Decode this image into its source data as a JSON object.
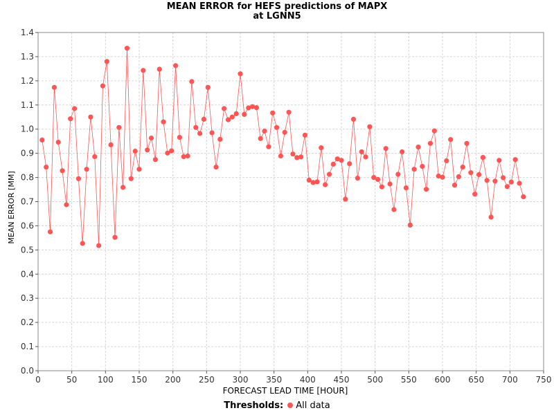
{
  "chart_data": {
    "type": "line",
    "title": "MEAN ERROR for HEFS predictions of MAPX",
    "subtitle": "at LGNN5",
    "xlabel": "FORECAST LEAD TIME [HOUR]",
    "ylabel": "MEAN ERROR [MM]",
    "xlim": [
      0,
      750
    ],
    "ylim": [
      0.0,
      1.4
    ],
    "x_ticks": [
      "0",
      "50",
      "100",
      "150",
      "200",
      "250",
      "300",
      "350",
      "400",
      "450",
      "500",
      "550",
      "600",
      "650",
      "700",
      "750"
    ],
    "y_ticks": [
      "0.0",
      "0.1",
      "0.2",
      "0.3",
      "0.4",
      "0.5",
      "0.6",
      "0.7",
      "0.8",
      "0.9",
      "1.0",
      "1.1",
      "1.2",
      "1.3",
      "1.4"
    ],
    "grid": true,
    "legend_placement": "bottom",
    "legend_title": "Thresholds:",
    "series": [
      {
        "name": "All data",
        "color": "#ff5555",
        "x": [
          6,
          12,
          18,
          24,
          30,
          36,
          42,
          48,
          54,
          60,
          66,
          72,
          78,
          84,
          90,
          96,
          102,
          108,
          114,
          120,
          126,
          132,
          138,
          144,
          150,
          156,
          162,
          168,
          174,
          180,
          186,
          192,
          198,
          204,
          210,
          216,
          222,
          228,
          234,
          240,
          246,
          252,
          258,
          264,
          270,
          276,
          282,
          288,
          294,
          300,
          306,
          312,
          318,
          324,
          330,
          336,
          342,
          348,
          354,
          360,
          366,
          372,
          378,
          384,
          390,
          396,
          402,
          408,
          414,
          420,
          426,
          432,
          438,
          444,
          450,
          456,
          462,
          468,
          474,
          480,
          486,
          492,
          498,
          504,
          510,
          516,
          522,
          528,
          534,
          540,
          546,
          552,
          558,
          564,
          570,
          576,
          582,
          588,
          594,
          600,
          606,
          612,
          618,
          624,
          630,
          636,
          642,
          648,
          654,
          660,
          666,
          672,
          678,
          684,
          690,
          696,
          702,
          708,
          714,
          720
        ],
        "y": [
          0.955,
          0.843,
          0.575,
          1.173,
          0.946,
          0.828,
          0.687,
          1.043,
          1.085,
          0.795,
          0.527,
          0.834,
          1.05,
          0.886,
          0.518,
          1.179,
          1.28,
          0.935,
          0.552,
          1.007,
          0.759,
          1.335,
          0.795,
          0.909,
          0.834,
          1.243,
          0.914,
          0.963,
          0.874,
          1.248,
          1.03,
          0.901,
          0.91,
          1.263,
          0.966,
          0.886,
          0.889,
          1.197,
          1.007,
          0.982,
          1.041,
          1.173,
          0.985,
          0.843,
          0.958,
          1.085,
          1.039,
          1.05,
          1.064,
          1.229,
          1.061,
          1.088,
          1.093,
          1.089,
          0.961,
          0.992,
          0.927,
          1.067,
          1.007,
          0.889,
          0.987,
          1.07,
          0.897,
          0.882,
          0.885,
          0.975,
          0.789,
          0.779,
          0.782,
          0.923,
          0.77,
          0.813,
          0.855,
          0.877,
          0.871,
          0.71,
          0.857,
          1.041,
          0.797,
          0.906,
          0.885,
          1.01,
          0.8,
          0.792,
          0.761,
          0.92,
          0.773,
          0.667,
          0.813,
          0.906,
          0.757,
          0.603,
          0.834,
          0.926,
          0.846,
          0.751,
          0.941,
          0.993,
          0.806,
          0.801,
          0.869,
          0.957,
          0.768,
          0.803,
          0.843,
          0.941,
          0.82,
          0.731,
          0.812,
          0.883,
          0.788,
          0.636,
          0.785,
          0.871,
          0.799,
          0.762,
          0.781,
          0.874,
          0.776,
          0.72
        ]
      }
    ]
  }
}
